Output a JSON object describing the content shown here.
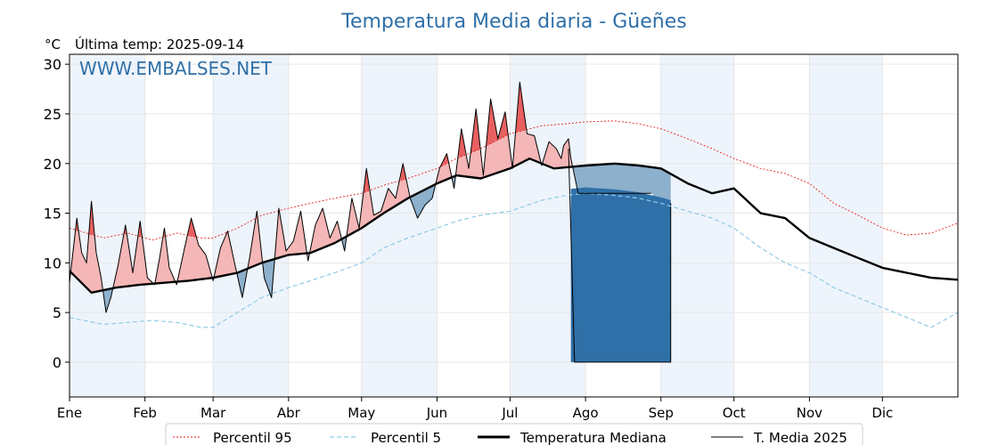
{
  "chart_data": {
    "type": "line",
    "title": "Temperatura Media diaria - Güeñes",
    "unit": "°C",
    "subtitle": "Última temp: 2025-09-14",
    "watermark": "WWW.EMBALSES.NET",
    "ylim": [
      -3.5,
      31
    ],
    "xlim": [
      1,
      366
    ],
    "yticks": [
      0,
      5,
      10,
      15,
      20,
      25,
      30
    ],
    "months": [
      {
        "label": "Ene",
        "day": 1
      },
      {
        "label": "Feb",
        "day": 32
      },
      {
        "label": "Mar",
        "day": 60
      },
      {
        "label": "Abr",
        "day": 91
      },
      {
        "label": "May",
        "day": 121
      },
      {
        "label": "Jun",
        "day": 152
      },
      {
        "label": "Jul",
        "day": 182
      },
      {
        "label": "Ago",
        "day": 213
      },
      {
        "label": "Sep",
        "day": 244
      },
      {
        "label": "Oct",
        "day": 274
      },
      {
        "label": "Nov",
        "day": 305
      },
      {
        "label": "Dic",
        "day": 335
      }
    ],
    "grid": true,
    "legend_position": "bottom",
    "colors": {
      "p95": "#e8211e",
      "p5": "#8ecae6",
      "median": "#000000",
      "media2025": "#000000",
      "above": "#f4b6b6",
      "above_strong": "#e86060",
      "below": "#8db0cc",
      "gap": "#2f70a8",
      "band": "#eef4fb"
    },
    "series": [
      {
        "name": "Percentil 95",
        "key": "p95",
        "x": [
          1,
          15,
          25,
          35,
          45,
          55,
          60,
          70,
          80,
          91,
          100,
          110,
          121,
          130,
          140,
          152,
          160,
          170,
          182,
          195,
          205,
          213,
          225,
          235,
          244,
          255,
          265,
          274,
          285,
          295,
          305,
          315,
          325,
          335,
          345,
          355,
          366
        ],
        "y": [
          13.5,
          12.5,
          13,
          12.3,
          13,
          12.5,
          12.5,
          13.5,
          14.8,
          15.5,
          16,
          16.5,
          17,
          17.8,
          18.5,
          19.5,
          20.5,
          21.5,
          23,
          23.8,
          24,
          24.2,
          24.3,
          24,
          23.5,
          22.5,
          21.5,
          20.5,
          19.5,
          19,
          18,
          16,
          14.8,
          13.5,
          12.8,
          13,
          14
        ]
      },
      {
        "name": "Percentil 5",
        "key": "p5",
        "x": [
          1,
          15,
          25,
          35,
          45,
          55,
          60,
          70,
          80,
          91,
          100,
          110,
          121,
          130,
          140,
          152,
          160,
          170,
          182,
          195,
          205,
          213,
          225,
          235,
          244,
          255,
          265,
          274,
          285,
          295,
          305,
          315,
          325,
          335,
          345,
          355,
          366
        ],
        "y": [
          4.5,
          3.8,
          4,
          4.2,
          4,
          3.5,
          3.5,
          5,
          6.5,
          7.5,
          8.2,
          9,
          10,
          11.5,
          12.5,
          13.5,
          14.2,
          14.8,
          15.2,
          16.3,
          16.8,
          17,
          16.8,
          16.5,
          16,
          15.2,
          14.5,
          13.5,
          11.5,
          10,
          9,
          7.5,
          6.5,
          5.5,
          4.5,
          3.5,
          5
        ]
      },
      {
        "name": "Temperatura Mediana",
        "key": "median",
        "x": [
          1,
          10,
          20,
          30,
          40,
          50,
          60,
          70,
          80,
          91,
          100,
          110,
          121,
          130,
          140,
          152,
          160,
          170,
          182,
          190,
          200,
          213,
          225,
          235,
          244,
          255,
          265,
          274,
          285,
          295,
          305,
          315,
          325,
          335,
          345,
          355,
          366
        ],
        "y": [
          9.2,
          7,
          7.5,
          7.8,
          8,
          8.2,
          8.5,
          9,
          10,
          10.8,
          11,
          12,
          13.5,
          15,
          16.5,
          18,
          18.8,
          18.5,
          19.5,
          20.5,
          19.5,
          19.8,
          20,
          19.8,
          19.5,
          18,
          17,
          17.5,
          15,
          14.5,
          12.5,
          11.5,
          10.5,
          9.5,
          9,
          8.5,
          8.3
        ]
      },
      {
        "name": "T. Media 2025",
        "key": "media2025",
        "x": [
          1,
          4,
          6,
          8,
          10,
          12,
          14,
          16,
          18,
          21,
          24,
          27,
          30,
          33,
          36,
          38,
          40,
          42,
          45,
          48,
          51,
          54,
          57,
          60,
          63,
          66,
          69,
          72,
          75,
          78,
          81,
          84,
          87,
          90,
          93,
          96,
          99,
          102,
          105,
          108,
          111,
          114,
          117,
          120,
          123,
          126,
          129,
          132,
          135,
          138,
          141,
          144,
          147,
          150,
          153,
          156,
          159,
          162,
          165,
          168,
          171,
          174,
          177,
          180,
          183,
          186,
          189,
          192,
          195,
          198,
          201,
          203,
          204,
          206,
          207,
          210,
          240,
          245,
          247,
          248
        ],
        "y": [
          8,
          14.5,
          11,
          10,
          16.2,
          11,
          8.5,
          5,
          6.5,
          9.8,
          13.8,
          9,
          14.2,
          8.5,
          7.8,
          10.5,
          13.5,
          9.5,
          7.8,
          11.2,
          14.5,
          11.8,
          10.8,
          8.2,
          11.5,
          13.2,
          9.8,
          6.5,
          10.5,
          15.2,
          8.5,
          6.5,
          15.5,
          11.2,
          12.2,
          15.2,
          10.2,
          13.8,
          15.5,
          12.5,
          14.2,
          11.2,
          16.5,
          13.5,
          19.5,
          14.8,
          15.2,
          17.5,
          16.5,
          20,
          16.5,
          14.5,
          15.8,
          16.5,
          19.5,
          21,
          17.5,
          23.5,
          19.5,
          25.5,
          18.8,
          26.5,
          22.5,
          25.2,
          19.5,
          28.2,
          23,
          22.8,
          19.8,
          22.2,
          21.5,
          20.5,
          21.8,
          22.5,
          20.5,
          17,
          17,
          16,
          7,
          0
        ]
      }
    ]
  },
  "legend": {
    "p95": "Percentil 95",
    "p5": "Percentil 5",
    "median": "Temperatura Mediana",
    "media2025": "T. Media 2025"
  }
}
